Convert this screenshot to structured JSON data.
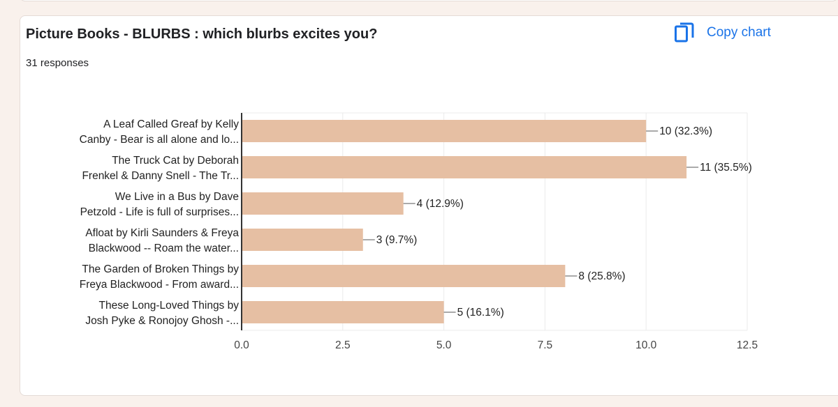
{
  "card": {
    "title": "Picture Books - BLURBS : which blurbs excites you?",
    "responses": "31 responses",
    "copy_label": "Copy chart",
    "copy_icon": "copy-icon",
    "accent_color": "#1a73e8"
  },
  "chart_data": {
    "type": "bar",
    "orientation": "horizontal",
    "title": "Picture Books - BLURBS : which blurbs excites you?",
    "categories": [
      [
        "A Leaf Called Greaf by Kelly",
        "Canby - Bear is all alone and lo..."
      ],
      [
        "The Truck Cat by Deborah",
        "Frenkel & Danny Snell - The Tr..."
      ],
      [
        "We Live in a Bus by Dave",
        "Petzold - Life is full of surprises..."
      ],
      [
        "Afloat by Kirli Saunders & Freya",
        "Blackwood -- Roam the water..."
      ],
      [
        "The Garden of Broken Things by",
        "Freya Blackwood - From award..."
      ],
      [
        "These Long-Loved Things by",
        "Josh Pyke & Ronojoy Ghosh -..."
      ]
    ],
    "values": [
      10,
      11,
      4,
      3,
      8,
      5
    ],
    "data_labels": [
      "10 (32.3%)",
      "11 (35.5%)",
      "4 (12.9%)",
      "3 (9.7%)",
      "8 (25.8%)",
      "5 (16.1%)"
    ],
    "xlim": [
      0,
      12.5
    ],
    "x_ticks": [
      0,
      2.5,
      5,
      7.5,
      10,
      12.5
    ],
    "x_tick_labels": [
      "0.0",
      "2.5",
      "5.0",
      "7.5",
      "10.0",
      "12.5"
    ],
    "xlabel": "",
    "ylabel": "",
    "grid": true,
    "bar_color": "#e6bfa3"
  }
}
